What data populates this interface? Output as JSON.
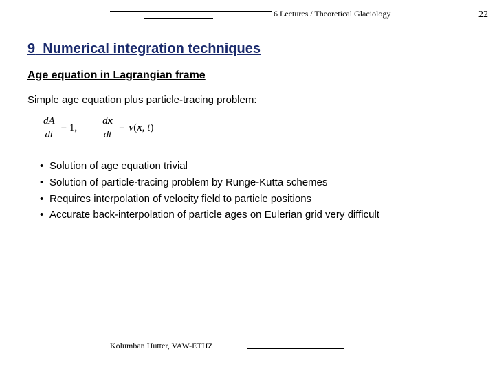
{
  "header": {
    "title": "6 Lectures / Theoretical Glaciology",
    "page_number": "22"
  },
  "section": {
    "number": "9",
    "title": "Numerical integration techniques"
  },
  "subheading": "Age equation in Lagrangian frame",
  "intro": "Simple age equation plus particle-tracing problem:",
  "equations": {
    "eq1": {
      "num": "dA",
      "den": "dt",
      "rhs": "= 1,"
    },
    "eq2": {
      "num": "d",
      "num_var": "x",
      "den": "dt",
      "rhs_eq": "=",
      "rhs_fn": "v",
      "rhs_open": "(",
      "rhs_arg1": "x",
      "rhs_comma": ", ",
      "rhs_arg2": "t",
      "rhs_close": ")"
    }
  },
  "bullets": [
    "Solution of age equation trivial",
    "Solution of particle-tracing problem by Runge-Kutta schemes",
    "Requires interpolation of velocity field to particle positions",
    "Accurate back-interpolation of particle ages on Eulerian grid very difficult"
  ],
  "footer": {
    "author": "Kolumban Hutter, VAW-ETHZ"
  }
}
